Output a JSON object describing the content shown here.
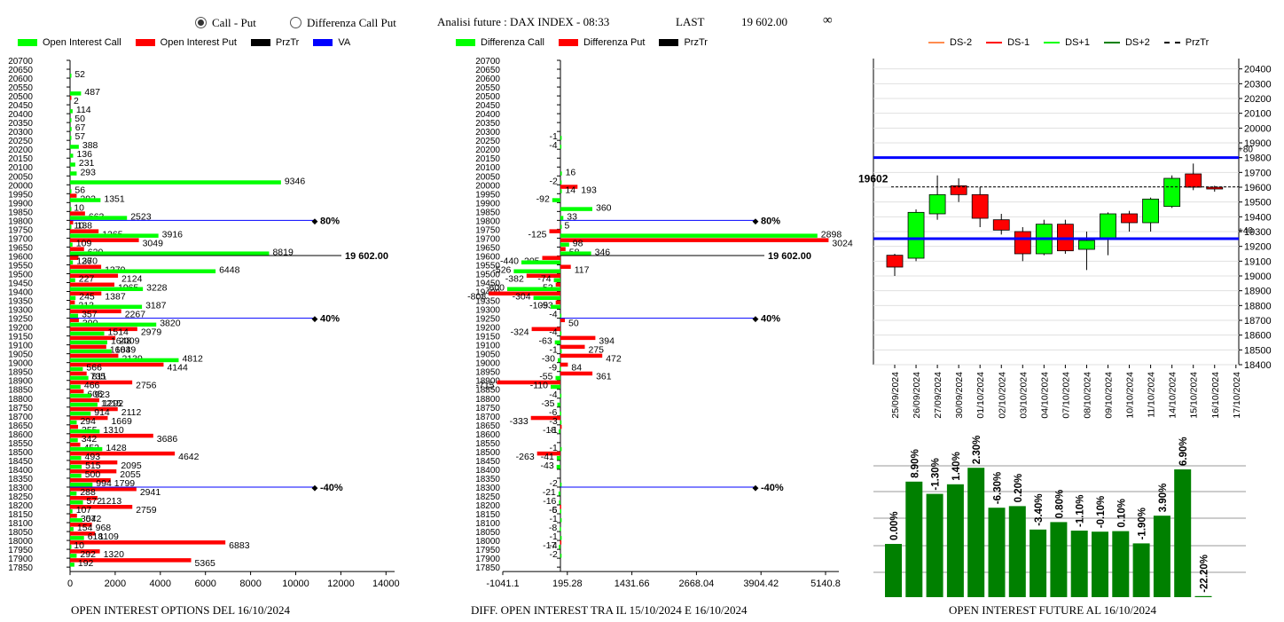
{
  "header": {
    "radio_call_put": "Call - Put",
    "radio_diff": "Differenza Call Put",
    "title": "Analisi future : DAX INDEX - 08:33",
    "last_label": "LAST",
    "last_value": "19 602.00",
    "infinity": "∞"
  },
  "legend1": [
    {
      "label": "Open Interest Call",
      "color": "#00ff00"
    },
    {
      "label": "Open Interest Put",
      "color": "#ff0000"
    },
    {
      "label": "PrzTr",
      "color": "#000000"
    },
    {
      "label": "VA",
      "color": "#0000ff"
    }
  ],
  "legend2": [
    {
      "label": "Differenza Call",
      "color": "#00ff00"
    },
    {
      "label": "Differenza Put",
      "color": "#ff0000"
    },
    {
      "label": "PrzTr",
      "color": "#000000"
    }
  ],
  "legend3": [
    {
      "label": "DS-2",
      "color": "#ff8c50",
      "style": "solid"
    },
    {
      "label": "DS-1",
      "color": "#ff0000",
      "style": "solid"
    },
    {
      "label": "DS+1",
      "color": "#00ff00",
      "style": "solid"
    },
    {
      "label": "DS+2",
      "color": "#008000",
      "style": "solid"
    },
    {
      "label": "PrzTr",
      "color": "#000000",
      "style": "dashed"
    }
  ],
  "captions": {
    "c1": "OPEN INTEREST OPTIONS DEL 16/10/2024",
    "c2": "DIFF. OPEN INTEREST TRA IL 15/10/2024 E 16/10/2024",
    "c3": "OPEN INTEREST FUTURE AL 16/10/2024"
  },
  "colors": {
    "call": "#00ff00",
    "put": "#ff0000",
    "va": "#0000ff",
    "up": "#00ff00",
    "down": "#ff0000",
    "bar": "#008000"
  },
  "chart_data": [
    {
      "type": "bar",
      "strikes": [
        20700,
        20650,
        20600,
        20550,
        20500,
        20450,
        20400,
        20350,
        20300,
        20250,
        20200,
        20150,
        20100,
        20050,
        20000,
        19950,
        19900,
        19850,
        19800,
        19750,
        19700,
        19650,
        19600,
        19550,
        19500,
        19450,
        19400,
        19350,
        19300,
        19250,
        19200,
        19150,
        19100,
        19050,
        19000,
        18950,
        18900,
        18850,
        18800,
        18750,
        18700,
        18650,
        18600,
        18550,
        18500,
        18450,
        18400,
        18350,
        18300,
        18250,
        18200,
        18150,
        18100,
        18050,
        18000,
        17950,
        17900,
        17850
      ],
      "series": [
        {
          "name": "Open Interest Call",
          "values": [
            0,
            0,
            52,
            0,
            487,
            0,
            114,
            50,
            67,
            57,
            388,
            136,
            231,
            293,
            9346,
            56,
            1351,
            10,
            2523,
            10,
            3916,
            109,
            8819,
            126,
            6448,
            227,
            3228,
            245,
            3187,
            357,
            3820,
            1514,
            1648,
            1839,
            4812,
            566,
            811,
            466,
            923,
            1215,
            914,
            294,
            1310,
            342,
            1428,
            493,
            515,
            500,
            994,
            288,
            572,
            107,
            542,
            154,
            618,
            10,
            292,
            192
          ]
        },
        {
          "name": "Open Interest Put",
          "values": [
            0,
            0,
            0,
            0,
            2,
            0,
            0,
            0,
            0,
            0,
            0,
            0,
            0,
            0,
            0,
            292,
            0,
            663,
            138,
            1265,
            3049,
            620,
            370,
            1379,
            2124,
            1965,
            1387,
            213,
            2267,
            390,
            2979,
            2009,
            1604,
            2139,
            4144,
            735,
            2756,
            605,
            1292,
            2112,
            1669,
            355,
            3686,
            452,
            4642,
            2095,
            2055,
            1799,
            2941,
            1213,
            2759,
            307,
            968,
            1109,
            6883,
            1320,
            5365,
            0
          ]
        }
      ],
      "xticks": [
        0,
        2000,
        4000,
        6000,
        8000,
        10000,
        12000,
        14000
      ],
      "xlim": [
        0,
        15000
      ],
      "price_lines": [
        {
          "price": 19800,
          "label": "80%",
          "color": "#0000ff"
        },
        {
          "price": 19602,
          "label": "19 602.00",
          "color": "#000000"
        },
        {
          "price": 19250,
          "label": "40%",
          "color": "#0000ff"
        },
        {
          "price": 18300,
          "label": "-40%",
          "color": "#0000ff"
        }
      ]
    },
    {
      "type": "bar",
      "strikes": [
        20700,
        20650,
        20600,
        20550,
        20500,
        20450,
        20400,
        20350,
        20300,
        20250,
        20200,
        20150,
        20100,
        20050,
        20000,
        19950,
        19900,
        19850,
        19800,
        19750,
        19700,
        19650,
        19600,
        19550,
        19500,
        19450,
        19400,
        19350,
        19300,
        19250,
        19200,
        19150,
        19100,
        19050,
        19000,
        18950,
        18900,
        18850,
        18800,
        18750,
        18700,
        18650,
        18600,
        18550,
        18500,
        18450,
        18400,
        18350,
        18300,
        18250,
        18200,
        18150,
        18100,
        18050,
        18000,
        17950,
        17900,
        17850
      ],
      "series": [
        {
          "name": "Differenza Call",
          "values": [
            0,
            0,
            0,
            0,
            0,
            0,
            0,
            0,
            0,
            -1,
            -4,
            0,
            0,
            16,
            -2,
            14,
            -92,
            360,
            33,
            5,
            2898,
            98,
            346,
            -440,
            -526,
            -74,
            -600,
            -304,
            -109,
            -4,
            0,
            -4,
            -63,
            -1,
            -30,
            -9,
            -55,
            -110,
            -4,
            -35,
            -6,
            -3,
            -18,
            0,
            -1,
            -41,
            -43,
            0,
            -2,
            -21,
            -16,
            -5,
            -1,
            -8,
            -1,
            -17,
            -2,
            0
          ]
        },
        {
          "name": "Differenza Put",
          "values": [
            0,
            0,
            0,
            0,
            0,
            0,
            0,
            0,
            0,
            0,
            0,
            0,
            0,
            0,
            193,
            0,
            0,
            0,
            0,
            -125,
            3024,
            58,
            -205,
            117,
            -382,
            -53,
            -808,
            -53,
            0,
            50,
            -324,
            394,
            275,
            472,
            84,
            361,
            -715,
            0,
            0,
            0,
            -333,
            -1,
            0,
            0,
            -263,
            0,
            0,
            0,
            0,
            0,
            -6,
            0,
            0,
            0,
            -4,
            0,
            0,
            0
          ]
        }
      ],
      "xticks": [
        "-1041.1",
        "195.28",
        "1431.66",
        "2668.04",
        "3904.42",
        "5140.8"
      ],
      "xlim": [
        -1041.1,
        5140.8
      ],
      "price_lines": [
        {
          "price": 19800,
          "label": "80%",
          "color": "#0000ff"
        },
        {
          "price": 19602,
          "label": "19 602.00",
          "color": "#000000"
        },
        {
          "price": 19250,
          "label": "40%",
          "color": "#0000ff"
        },
        {
          "price": 18300,
          "label": "-40%",
          "color": "#0000ff"
        }
      ]
    },
    {
      "type": "candlestick",
      "dates": [
        "25/09/2024",
        "26/09/2024",
        "27/09/2024",
        "30/09/2024",
        "01/10/2024",
        "02/10/2024",
        "03/10/2024",
        "04/10/2024",
        "07/10/2024",
        "08/10/2024",
        "09/10/2024",
        "10/10/2024",
        "11/10/2024",
        "14/10/2024",
        "15/10/2024",
        "16/10/2024",
        "17/10/2024"
      ],
      "ohlc": [
        [
          19140,
          19150,
          19000,
          19060
        ],
        [
          19120,
          19450,
          19100,
          19430
        ],
        [
          19420,
          19680,
          19380,
          19550
        ],
        [
          19610,
          19660,
          19500,
          19550
        ],
        [
          19550,
          19600,
          19330,
          19390
        ],
        [
          19380,
          19420,
          19280,
          19310
        ],
        [
          19300,
          19330,
          19100,
          19150
        ],
        [
          19150,
          19380,
          19140,
          19350
        ],
        [
          19350,
          19380,
          19150,
          19170
        ],
        [
          19180,
          19300,
          19040,
          19240
        ],
        [
          19250,
          19430,
          19140,
          19420
        ],
        [
          19420,
          19440,
          19300,
          19360
        ],
        [
          19360,
          19530,
          19300,
          19520
        ],
        [
          19470,
          19680,
          19460,
          19660
        ],
        [
          19690,
          19760,
          19580,
          19600
        ],
        [
          19600,
          19610,
          19570,
          19590
        ],
        [
          null,
          null,
          null,
          null
        ]
      ],
      "yticks": [
        20400,
        20300,
        20200,
        20100,
        20000,
        19900,
        19800,
        19700,
        19600,
        19500,
        19400,
        19300,
        19200,
        19100,
        19000,
        18900,
        18800,
        18700,
        18600,
        18500,
        18400
      ],
      "ylim": [
        18400,
        20440
      ],
      "levels": [
        {
          "price": 19800,
          "label": "+80",
          "color": "#0000ff"
        },
        {
          "price": 19252,
          "label": "+40",
          "color": "#0000ff"
        },
        {
          "price": 19602,
          "label": "19602",
          "color": "#000000"
        }
      ]
    },
    {
      "type": "bar",
      "labels": [
        "0.00%",
        "8.90%",
        "-1.30%",
        "1.40%",
        "2.30%",
        "-6.30%",
        "0.20%",
        "-3.40%",
        "0.80%",
        "-1.10%",
        "-0.10%",
        "0.10%",
        "-1.90%",
        "3.90%",
        "6.90%",
        "-22.20%"
      ],
      "values": [
        100,
        217,
        194,
        212,
        243,
        168,
        171,
        127,
        141,
        125,
        123,
        124,
        101,
        153,
        240,
        2
      ]
    }
  ]
}
